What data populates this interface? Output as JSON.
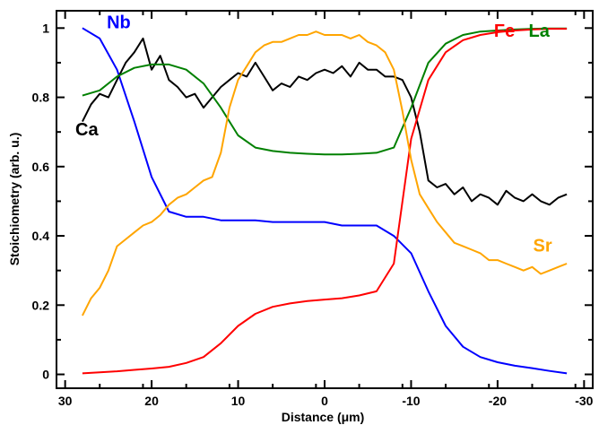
{
  "chart_data": {
    "type": "line",
    "xlabel": "Distance (μm)",
    "ylabel": "Stoichiometry (arb. u.)",
    "xlim": [
      31,
      -31
    ],
    "ylim": [
      -0.04,
      1.05
    ],
    "grid": false,
    "x_ticks": [
      30,
      20,
      10,
      0,
      -10,
      -20,
      -30
    ],
    "y_ticks": [
      0,
      0.2,
      0.4,
      0.6,
      0.8,
      1
    ],
    "series": [
      {
        "name": "Nb",
        "color": "#0000ff",
        "x": [
          28,
          26,
          24,
          22,
          20,
          18,
          16,
          14,
          12,
          10,
          8,
          6,
          4,
          2,
          0,
          -2,
          -4,
          -6,
          -8,
          -10,
          -12,
          -14,
          -16,
          -18,
          -20,
          -22,
          -24,
          -26,
          -28
        ],
        "y": [
          1.0,
          0.97,
          0.88,
          0.73,
          0.57,
          0.47,
          0.455,
          0.455,
          0.445,
          0.445,
          0.445,
          0.44,
          0.44,
          0.44,
          0.44,
          0.43,
          0.43,
          0.43,
          0.4,
          0.35,
          0.24,
          0.14,
          0.08,
          0.05,
          0.035,
          0.025,
          0.018,
          0.01,
          0.003
        ]
      },
      {
        "name": "Ca",
        "color": "#000000",
        "x": [
          28,
          27,
          26,
          25,
          24,
          23,
          22,
          21,
          20,
          19,
          18,
          17,
          16,
          15,
          14,
          13,
          12,
          11,
          10,
          9,
          8,
          7,
          6,
          5,
          4,
          3,
          2,
          1,
          0,
          -1,
          -2,
          -3,
          -4,
          -5,
          -6,
          -7,
          -8,
          -9,
          -10,
          -11,
          -12,
          -13,
          -14,
          -15,
          -16,
          -17,
          -18,
          -19,
          -20,
          -21,
          -22,
          -23,
          -24,
          -25,
          -26,
          -27,
          -28
        ],
        "y": [
          0.73,
          0.78,
          0.81,
          0.8,
          0.85,
          0.9,
          0.93,
          0.97,
          0.88,
          0.92,
          0.85,
          0.83,
          0.8,
          0.81,
          0.77,
          0.8,
          0.83,
          0.85,
          0.87,
          0.86,
          0.9,
          0.86,
          0.82,
          0.84,
          0.83,
          0.86,
          0.85,
          0.87,
          0.88,
          0.87,
          0.89,
          0.86,
          0.9,
          0.88,
          0.88,
          0.86,
          0.86,
          0.85,
          0.8,
          0.7,
          0.56,
          0.54,
          0.55,
          0.52,
          0.54,
          0.5,
          0.52,
          0.51,
          0.49,
          0.53,
          0.51,
          0.5,
          0.52,
          0.5,
          0.49,
          0.51,
          0.52
        ]
      },
      {
        "name": "La",
        "color": "#008000",
        "x": [
          28,
          26,
          24,
          22,
          20,
          18,
          16,
          14,
          12,
          10,
          8,
          6,
          4,
          2,
          0,
          -2,
          -4,
          -6,
          -8,
          -10,
          -12,
          -14,
          -16,
          -18,
          -20,
          -22,
          -24,
          -26,
          -28
        ],
        "y": [
          0.805,
          0.82,
          0.86,
          0.885,
          0.895,
          0.895,
          0.88,
          0.84,
          0.77,
          0.69,
          0.655,
          0.645,
          0.64,
          0.637,
          0.635,
          0.635,
          0.637,
          0.64,
          0.655,
          0.77,
          0.9,
          0.955,
          0.98,
          0.99,
          0.993,
          0.996,
          0.998,
          0.999,
          0.999
        ]
      },
      {
        "name": "Fe",
        "color": "#ff0000",
        "x": [
          28,
          26,
          24,
          22,
          20,
          18,
          16,
          14,
          12,
          10,
          8,
          6,
          4,
          2,
          0,
          -2,
          -4,
          -6,
          -8,
          -10,
          -12,
          -14,
          -16,
          -18,
          -20,
          -22,
          -24,
          -26,
          -28
        ],
        "y": [
          0.003,
          0.006,
          0.009,
          0.013,
          0.017,
          0.022,
          0.033,
          0.05,
          0.09,
          0.14,
          0.175,
          0.195,
          0.205,
          0.212,
          0.216,
          0.22,
          0.228,
          0.24,
          0.32,
          0.68,
          0.85,
          0.93,
          0.965,
          0.98,
          0.988,
          0.993,
          0.996,
          0.998,
          0.998
        ]
      },
      {
        "name": "Sr",
        "color": "#ffa500",
        "x": [
          28,
          27,
          26,
          25,
          24,
          23,
          22,
          21,
          20,
          19,
          18,
          17,
          16,
          15,
          14,
          13,
          12,
          11,
          10,
          9,
          8,
          7,
          6,
          5,
          4,
          3,
          2,
          1,
          0,
          -1,
          -2,
          -3,
          -4,
          -5,
          -6,
          -7,
          -8,
          -9,
          -10,
          -11,
          -12,
          -13,
          -14,
          -15,
          -16,
          -17,
          -18,
          -19,
          -20,
          -21,
          -22,
          -23,
          -24,
          -25,
          -26,
          -27,
          -28
        ],
        "y": [
          0.17,
          0.22,
          0.25,
          0.3,
          0.37,
          0.39,
          0.41,
          0.43,
          0.44,
          0.46,
          0.49,
          0.51,
          0.52,
          0.54,
          0.56,
          0.57,
          0.64,
          0.77,
          0.85,
          0.89,
          0.93,
          0.95,
          0.96,
          0.96,
          0.97,
          0.98,
          0.98,
          0.99,
          0.98,
          0.98,
          0.98,
          0.97,
          0.98,
          0.96,
          0.95,
          0.93,
          0.88,
          0.76,
          0.62,
          0.52,
          0.48,
          0.44,
          0.41,
          0.38,
          0.37,
          0.36,
          0.35,
          0.33,
          0.33,
          0.32,
          0.31,
          0.3,
          0.31,
          0.29,
          0.3,
          0.31,
          0.32
        ]
      }
    ],
    "labels": [
      {
        "text": "Nb",
        "color": "#0000ff",
        "x": 23.8,
        "y": 1.0
      },
      {
        "text": "Ca",
        "color": "#000000",
        "x": 27.5,
        "y": 0.69
      },
      {
        "text": "Fe",
        "color": "#ff0000",
        "x": -20.8,
        "y": 0.975
      },
      {
        "text": "La",
        "color": "#008000",
        "x": -24.8,
        "y": 0.975
      },
      {
        "text": "Sr",
        "color": "#ffa500",
        "x": -25.2,
        "y": 0.355
      }
    ]
  }
}
